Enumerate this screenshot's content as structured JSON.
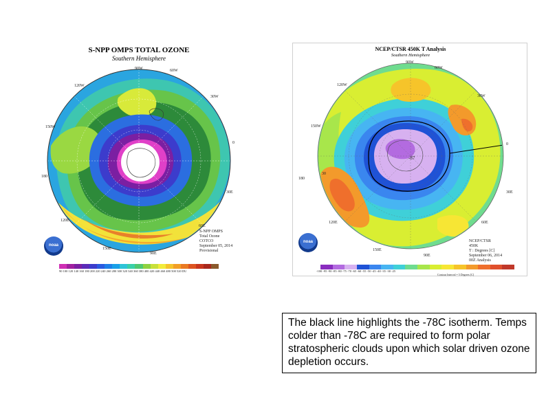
{
  "left_map": {
    "title": "S-NPP OMPS TOTAL OZONE",
    "subtitle": "Southern Hemisphere",
    "lon_labels": [
      "90W",
      "60W",
      "120W",
      "30W",
      "150W",
      "0",
      "180",
      "30E",
      "120E",
      "60E",
      "150E",
      "90E"
    ],
    "info_lines": [
      "S-NPP OMPS",
      "Total Ozone",
      "COTCO",
      "September 05, 2014",
      "Provisional"
    ],
    "colorbar_ticks": "90 100 120 140 160 180 200 220 240 260 280 300 320 340 360 380 400 420 440 460 480 500 520 DU",
    "colorbar_colors": [
      "#cf2fb4",
      "#a020a0",
      "#7b1fa2",
      "#5b2bb8",
      "#3c3ccc",
      "#2a5be0",
      "#1e7fe8",
      "#19a0e8",
      "#2ec4d8",
      "#3ad0a8",
      "#50c870",
      "#8fd240",
      "#c8e03a",
      "#f2ec3a",
      "#f5c42c",
      "#f29f26",
      "#ea7a22",
      "#dd5420",
      "#c8361d",
      "#a8281c",
      "#8a5a2c"
    ],
    "logo_text": "noaa"
  },
  "right_map": {
    "title": "NCEP/CTSR 450K T Analysis",
    "subtitle": "Southern Hemisphere",
    "lon_labels": [
      "90W",
      "60W",
      "120W",
      "30W",
      "150W",
      "0",
      "180",
      "30",
      "30E",
      "120E",
      "60E",
      "150E",
      "90E"
    ],
    "center_label": "-87",
    "info_lines": [
      "NCEP/CTSR",
      "450K",
      "T : Degrees [C]",
      "September 06, 2014",
      "00Z Analysis"
    ],
    "colorbar_ticks": "-100 -95 -90 -85 -80 -75 -70 -65 -60 -55 -50 -45 -40 -35 -30 -25",
    "colorbar_colors": [
      "#8a2dbf",
      "#b36be0",
      "#d7b1f0",
      "#1f52d6",
      "#3a86ef",
      "#47b5f2",
      "#3fd0d8",
      "#6fdc8f",
      "#a8e64b",
      "#d9ee32",
      "#f7e634",
      "#f6c42a",
      "#f39a2b",
      "#ef6f2c",
      "#e04f2c",
      "#c0382a"
    ],
    "contour_note": "Contour Interval = 5 Degrees [C]",
    "logo_text": "noaa"
  },
  "caption": {
    "text": "The black line highlights the -78C isotherm. Temps colder than -78C are required to form polar stratospheric clouds upon which solar driven ozone depletion occurs."
  }
}
